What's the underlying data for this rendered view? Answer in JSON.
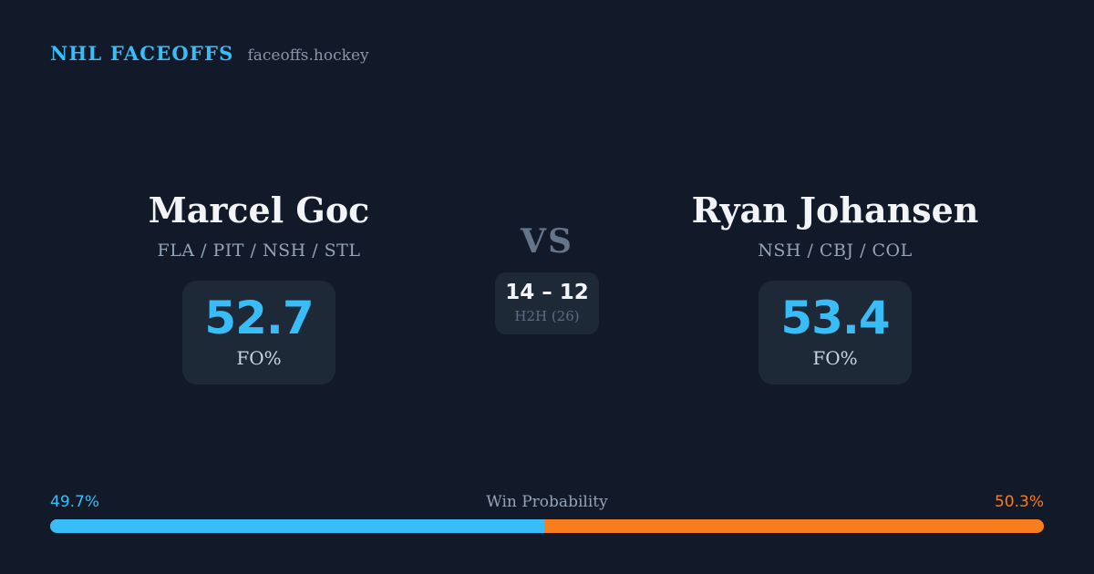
{
  "header": {
    "brand": "NHL FACEOFFS",
    "site": "faceoffs.hockey"
  },
  "matchup": {
    "vs_label": "VS",
    "h2h": {
      "score": "14 – 12",
      "label": "H2H (26)"
    },
    "players": [
      {
        "name": "Marcel Goc",
        "teams": "FLA / PIT / NSH / STL",
        "fo_pct": "52.7",
        "fo_label": "FO%"
      },
      {
        "name": "Ryan Johansen",
        "teams": "NSH / CBJ / COL",
        "fo_pct": "53.4",
        "fo_label": "FO%"
      }
    ]
  },
  "win_probability": {
    "title": "Win Probability",
    "left_pct_label": "49.7%",
    "right_pct_label": "50.3%",
    "left_value": 49.7,
    "right_value": 50.3
  },
  "colors": {
    "background": "#121a2a",
    "card_background": "#1e2938",
    "accent_blue": "#38bdf8",
    "accent_orange": "#f97c1d",
    "text_primary": "#f2f4f8",
    "text_muted": "#94a3b8"
  }
}
